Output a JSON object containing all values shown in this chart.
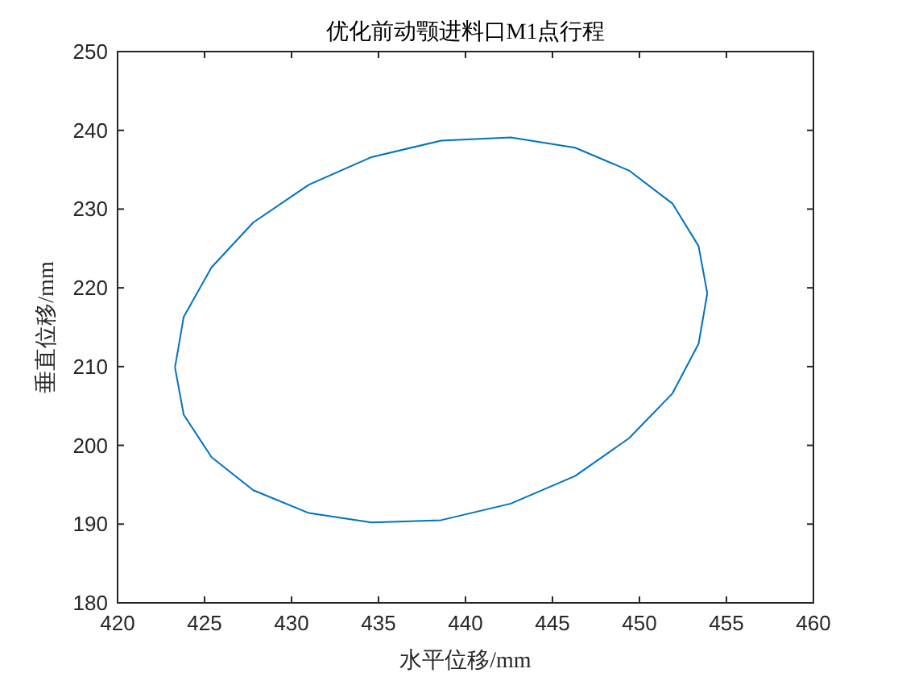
{
  "chart_data": {
    "type": "line",
    "title": "优化前动颚进料口M1点行程",
    "xlabel": "水平位移/mm",
    "ylabel": "垂直位移/mm",
    "xlim": [
      420,
      460
    ],
    "xticks": [
      420,
      425,
      430,
      435,
      440,
      445,
      450,
      455,
      460
    ],
    "ylim": [
      180,
      250
    ],
    "yticks": [
      180,
      190,
      200,
      210,
      220,
      230,
      240,
      250
    ],
    "grid": false,
    "series": [
      {
        "color": "#0072bd",
        "x": [
          423.3,
          423.8,
          425.4,
          427.8,
          431.0,
          434.6,
          438.6,
          442.6,
          446.3,
          449.4,
          451.9,
          453.4,
          453.9,
          453.4,
          451.9,
          449.4,
          446.3,
          442.6,
          438.6,
          434.6,
          431.0,
          427.8,
          425.4,
          423.8,
          423.3
        ],
        "values": [
          209.9,
          216.3,
          222.6,
          228.3,
          233.1,
          236.6,
          238.7,
          239.1,
          237.8,
          234.9,
          230.7,
          225.3,
          219.3,
          212.9,
          206.6,
          200.9,
          196.1,
          192.6,
          190.5,
          190.2,
          191.4,
          194.3,
          198.5,
          203.9,
          209.9
        ]
      }
    ]
  }
}
